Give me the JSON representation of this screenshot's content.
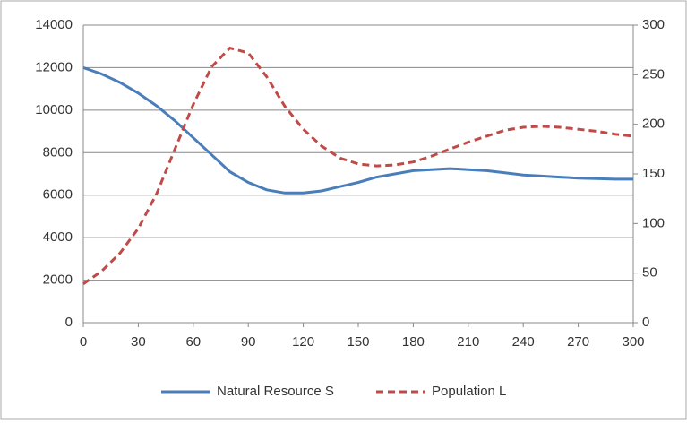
{
  "chart_data": {
    "type": "line",
    "x": [
      0,
      10,
      20,
      30,
      40,
      50,
      60,
      70,
      80,
      90,
      100,
      110,
      120,
      130,
      140,
      150,
      160,
      170,
      180,
      190,
      200,
      210,
      220,
      230,
      240,
      250,
      260,
      270,
      280,
      290,
      300
    ],
    "series": [
      {
        "name": "Natural Resource S",
        "color": "#4a7ebb",
        "dash": false,
        "axis": "y",
        "values": [
          12000,
          11700,
          11300,
          10800,
          10200,
          9500,
          8700,
          7900,
          7100,
          6600,
          6250,
          6100,
          6100,
          6200,
          6400,
          6600,
          6850,
          7000,
          7150,
          7200,
          7250,
          7200,
          7150,
          7050,
          6950,
          6900,
          6850,
          6800,
          6780,
          6750,
          6750
        ]
      },
      {
        "name": "Population L",
        "color": "#be4b48",
        "dash": true,
        "axis": "y2",
        "values": [
          39,
          52,
          70,
          95,
          130,
          175,
          220,
          258,
          277,
          272,
          248,
          218,
          195,
          178,
          166,
          160,
          158,
          159,
          162,
          168,
          175,
          182,
          188,
          194,
          197,
          198,
          197,
          195,
          193,
          190,
          188
        ]
      }
    ],
    "xlim": [
      0,
      300
    ],
    "xticks": [
      0,
      30,
      60,
      90,
      120,
      150,
      180,
      210,
      240,
      270,
      300
    ],
    "ylim": [
      0,
      14000
    ],
    "yticks": [
      0,
      2000,
      4000,
      6000,
      8000,
      10000,
      12000,
      14000
    ],
    "y2lim": [
      0,
      300
    ],
    "y2ticks": [
      0,
      50,
      100,
      150,
      200,
      250,
      300
    ],
    "grid": true,
    "legend": "bottom"
  }
}
